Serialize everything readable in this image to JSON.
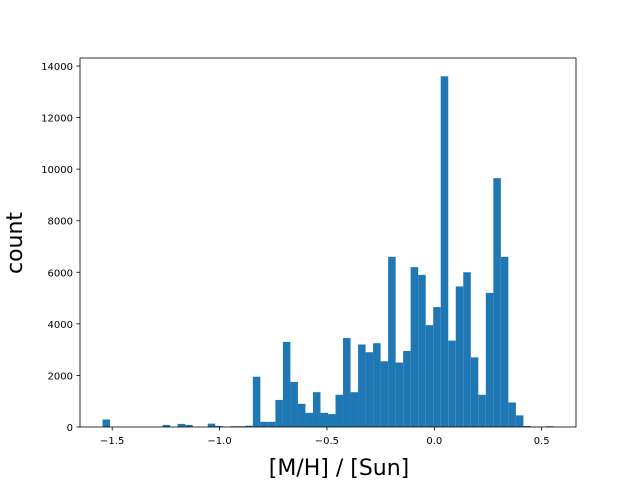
{
  "chart_data": {
    "type": "histogram",
    "xlabel": "[M/H] / [Sun]",
    "ylabel": "count",
    "color": "#1f77b4",
    "bins": [
      -1.545,
      -1.51,
      -1.475,
      -1.44,
      -1.405,
      -1.37,
      -1.335,
      -1.3,
      -1.265,
      -1.23,
      -1.195,
      -1.16,
      -1.125,
      -1.09,
      -1.055,
      -1.02,
      -0.985,
      -0.95,
      -0.915,
      -0.88,
      -0.845,
      -0.81,
      -0.775,
      -0.74,
      -0.705,
      -0.67,
      -0.635,
      -0.6,
      -0.565,
      -0.53,
      -0.495,
      -0.46,
      -0.425,
      -0.39,
      -0.355,
      -0.32,
      -0.285,
      -0.25,
      -0.215,
      -0.18,
      -0.145,
      -0.11,
      -0.075,
      -0.04,
      -0.005,
      0.03,
      0.065,
      0.1,
      0.135,
      0.17,
      0.205,
      0.24,
      0.275,
      0.31,
      0.345,
      0.38,
      0.415,
      0.45,
      0.485,
      0.52,
      0.555
    ],
    "values": [
      290,
      0,
      0,
      0,
      0,
      0,
      0,
      0,
      80,
      0,
      120,
      80,
      0,
      0,
      130,
      40,
      0,
      30,
      30,
      50,
      1950,
      200,
      200,
      1050,
      3300,
      1750,
      900,
      550,
      1350,
      550,
      500,
      1250,
      3450,
      1350,
      3200,
      2900,
      3250,
      2550,
      6600,
      2500,
      2950,
      6200,
      5900,
      3950,
      4650,
      13600,
      3350,
      5450,
      6000,
      2700,
      1250,
      5200,
      9650,
      6600,
      950,
      450,
      40,
      10,
      0,
      30
    ],
    "xlim": [
      -1.65,
      0.66
    ],
    "xticks": [
      {
        "value": -1.5,
        "label": "−1.5"
      },
      {
        "value": -1.0,
        "label": "−1.0"
      },
      {
        "value": -0.5,
        "label": "−0.5"
      },
      {
        "value": 0.0,
        "label": "0.0"
      },
      0.5
    ],
    "ylim": [
      0,
      14310
    ],
    "yticks": [
      0,
      2000,
      4000,
      6000,
      8000,
      10000,
      12000,
      14000
    ]
  }
}
